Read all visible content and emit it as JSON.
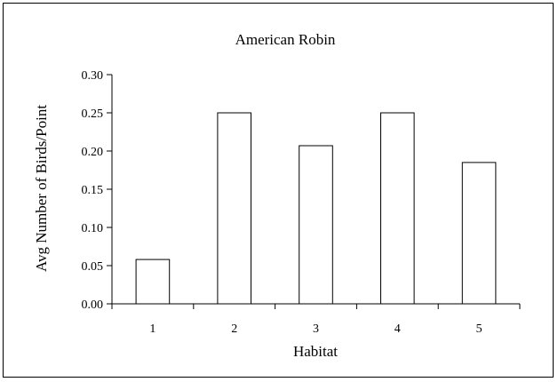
{
  "chart_data": {
    "type": "bar",
    "title": "American Robin",
    "xlabel": "Habitat",
    "ylabel": "Avg Number of Birds/Point",
    "categories": [
      "1",
      "2",
      "3",
      "4",
      "5"
    ],
    "values": [
      0.058,
      0.25,
      0.207,
      0.25,
      0.185
    ],
    "ylim": [
      0,
      0.3
    ],
    "yticks": [
      "0.00",
      "0.05",
      "0.10",
      "0.15",
      "0.20",
      "0.25",
      "0.30"
    ],
    "grid": false,
    "legend": "none",
    "colors": {
      "bar_fill": "#ffffff",
      "bar_stroke": "#000000",
      "axis": "#000000"
    }
  }
}
